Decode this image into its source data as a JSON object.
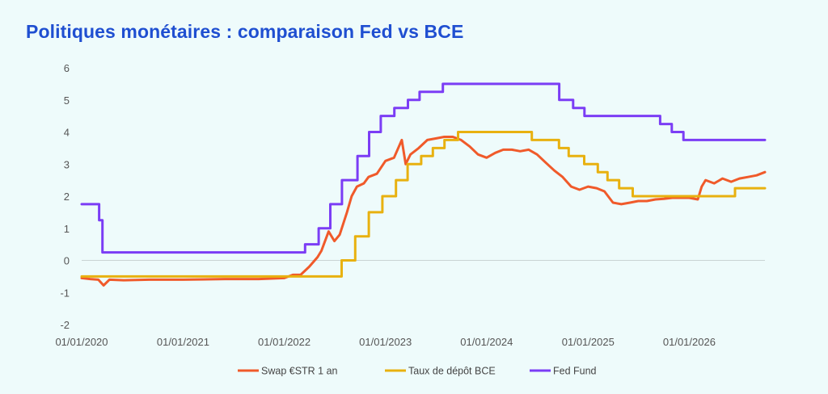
{
  "title": "Politiques monétaires : comparaison Fed vs BCE",
  "chart_data": {
    "type": "line",
    "title": "Politiques monétaires : comparaison Fed vs BCE",
    "xlabel": "",
    "ylabel": "",
    "x_range": [
      "2020-01-01",
      "2026-10-01"
    ],
    "ylim": [
      -2,
      6
    ],
    "y_ticks": [
      -2,
      -1,
      0,
      1,
      2,
      3,
      4,
      5,
      6
    ],
    "x_ticks": [
      "2020-01-01",
      "2021-01-01",
      "2022-01-01",
      "2023-01-01",
      "2024-01-01",
      "2025-01-01",
      "2026-01-01"
    ],
    "x_tick_labels": [
      "01/01/2020",
      "01/01/2021",
      "01/01/2022",
      "01/01/2023",
      "01/01/2024",
      "01/01/2025",
      "01/01/2026"
    ],
    "grid": false,
    "legend_position": "bottom",
    "series": [
      {
        "name": "Swap €STR 1 an",
        "color": "#f05a2a",
        "step": false,
        "points": [
          [
            "2020-01-01",
            -0.55
          ],
          [
            "2020-02-01",
            -0.58
          ],
          [
            "2020-03-01",
            -0.6
          ],
          [
            "2020-03-20",
            -0.78
          ],
          [
            "2020-04-10",
            -0.6
          ],
          [
            "2020-06-01",
            -0.62
          ],
          [
            "2020-09-01",
            -0.6
          ],
          [
            "2021-01-01",
            -0.6
          ],
          [
            "2021-06-01",
            -0.58
          ],
          [
            "2021-10-01",
            -0.58
          ],
          [
            "2022-01-01",
            -0.55
          ],
          [
            "2022-02-01",
            -0.45
          ],
          [
            "2022-03-01",
            -0.45
          ],
          [
            "2022-04-01",
            -0.2
          ],
          [
            "2022-05-01",
            0.1
          ],
          [
            "2022-05-15",
            0.3
          ],
          [
            "2022-06-10",
            0.9
          ],
          [
            "2022-07-01",
            0.6
          ],
          [
            "2022-07-20",
            0.8
          ],
          [
            "2022-08-15",
            1.5
          ],
          [
            "2022-09-01",
            2.0
          ],
          [
            "2022-09-20",
            2.3
          ],
          [
            "2022-10-15",
            2.4
          ],
          [
            "2022-11-01",
            2.6
          ],
          [
            "2022-12-01",
            2.7
          ],
          [
            "2023-01-01",
            3.1
          ],
          [
            "2023-02-01",
            3.2
          ],
          [
            "2023-03-01",
            3.75
          ],
          [
            "2023-03-15",
            3.0
          ],
          [
            "2023-04-01",
            3.3
          ],
          [
            "2023-05-01",
            3.5
          ],
          [
            "2023-06-01",
            3.75
          ],
          [
            "2023-07-01",
            3.8
          ],
          [
            "2023-08-01",
            3.85
          ],
          [
            "2023-09-01",
            3.85
          ],
          [
            "2023-10-01",
            3.75
          ],
          [
            "2023-11-01",
            3.55
          ],
          [
            "2023-12-01",
            3.3
          ],
          [
            "2024-01-01",
            3.2
          ],
          [
            "2024-02-01",
            3.35
          ],
          [
            "2024-03-01",
            3.45
          ],
          [
            "2024-04-01",
            3.45
          ],
          [
            "2024-05-01",
            3.4
          ],
          [
            "2024-06-01",
            3.45
          ],
          [
            "2024-07-01",
            3.3
          ],
          [
            "2024-08-01",
            3.05
          ],
          [
            "2024-09-01",
            2.8
          ],
          [
            "2024-10-01",
            2.6
          ],
          [
            "2024-11-01",
            2.3
          ],
          [
            "2024-12-01",
            2.2
          ],
          [
            "2025-01-01",
            2.3
          ],
          [
            "2025-02-01",
            2.25
          ],
          [
            "2025-03-01",
            2.15
          ],
          [
            "2025-04-01",
            1.8
          ],
          [
            "2025-05-01",
            1.75
          ],
          [
            "2025-06-01",
            1.8
          ],
          [
            "2025-07-01",
            1.85
          ],
          [
            "2025-08-01",
            1.85
          ],
          [
            "2025-09-01",
            1.9
          ],
          [
            "2025-10-01",
            1.92
          ],
          [
            "2025-11-01",
            1.95
          ],
          [
            "2025-12-01",
            1.95
          ],
          [
            "2026-01-01",
            1.95
          ],
          [
            "2026-02-01",
            1.9
          ],
          [
            "2026-02-15",
            2.3
          ],
          [
            "2026-03-01",
            2.5
          ],
          [
            "2026-04-01",
            2.4
          ],
          [
            "2026-05-01",
            2.55
          ],
          [
            "2026-06-01",
            2.45
          ],
          [
            "2026-07-01",
            2.55
          ],
          [
            "2026-08-01",
            2.6
          ],
          [
            "2026-09-01",
            2.65
          ],
          [
            "2026-10-01",
            2.75
          ]
        ]
      },
      {
        "name": "Taux de dépôt BCE",
        "color": "#e8b10f",
        "step": true,
        "points": [
          [
            "2020-01-01",
            -0.5
          ],
          [
            "2022-07-27",
            0.0
          ],
          [
            "2022-09-14",
            0.75
          ],
          [
            "2022-11-02",
            1.5
          ],
          [
            "2022-12-21",
            2.0
          ],
          [
            "2023-02-08",
            2.5
          ],
          [
            "2023-03-22",
            3.0
          ],
          [
            "2023-05-10",
            3.25
          ],
          [
            "2023-06-21",
            3.5
          ],
          [
            "2023-08-02",
            3.75
          ],
          [
            "2023-09-20",
            4.0
          ],
          [
            "2024-06-12",
            3.75
          ],
          [
            "2024-09-18",
            3.5
          ],
          [
            "2024-10-23",
            3.25
          ],
          [
            "2024-12-18",
            3.0
          ],
          [
            "2025-02-05",
            2.75
          ],
          [
            "2025-03-12",
            2.5
          ],
          [
            "2025-04-23",
            2.25
          ],
          [
            "2025-06-11",
            2.0
          ],
          [
            "2026-06-15",
            2.25
          ],
          [
            "2026-10-01",
            2.25
          ]
        ]
      },
      {
        "name": "Fed Fund",
        "color": "#7b3df5",
        "step": true,
        "points": [
          [
            "2020-01-01",
            1.75
          ],
          [
            "2020-03-04",
            1.25
          ],
          [
            "2020-03-16",
            0.25
          ],
          [
            "2022-03-17",
            0.5
          ],
          [
            "2022-05-05",
            1.0
          ],
          [
            "2022-06-16",
            1.75
          ],
          [
            "2022-07-28",
            2.5
          ],
          [
            "2022-09-22",
            3.25
          ],
          [
            "2022-11-03",
            4.0
          ],
          [
            "2022-12-15",
            4.5
          ],
          [
            "2023-02-02",
            4.75
          ],
          [
            "2023-03-23",
            5.0
          ],
          [
            "2023-05-04",
            5.25
          ],
          [
            "2023-07-27",
            5.5
          ],
          [
            "2024-09-19",
            5.0
          ],
          [
            "2024-11-08",
            4.75
          ],
          [
            "2024-12-19",
            4.5
          ],
          [
            "2025-09-18",
            4.25
          ],
          [
            "2025-10-30",
            4.0
          ],
          [
            "2025-12-11",
            3.75
          ],
          [
            "2026-10-01",
            3.75
          ]
        ]
      }
    ]
  }
}
